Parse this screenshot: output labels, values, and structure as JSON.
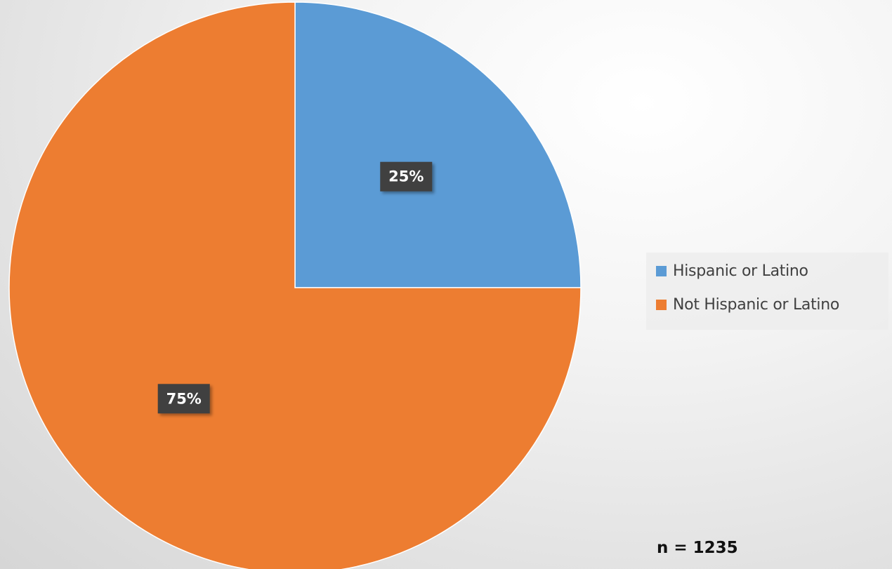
{
  "chart_data": {
    "type": "pie",
    "categories": [
      "Hispanic or Latino",
      "Not Hispanic or Latino"
    ],
    "values": [
      25,
      75
    ],
    "data_labels": [
      "25%",
      "75%"
    ],
    "colors": [
      "#5b9bd5",
      "#ed7d31"
    ],
    "label_box_color": "#404040",
    "start_angle_deg": 0,
    "direction": "clockwise",
    "legend_position": "right",
    "title": "",
    "note": "n = 1235"
  }
}
